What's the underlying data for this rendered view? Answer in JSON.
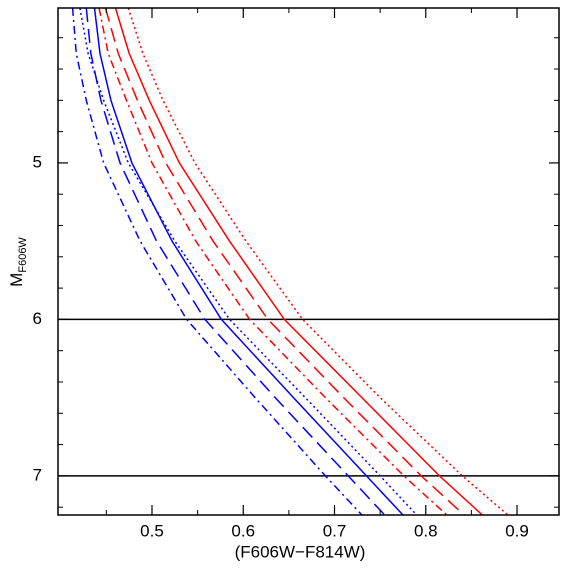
{
  "chart_data": {
    "type": "line",
    "x_label": "(F606W−F814W)",
    "y_label": "M",
    "y_label_sub": "F606W",
    "xlim": [
      0.397,
      0.946
    ],
    "ylim": [
      4.01,
      7.25
    ],
    "y_inverted": true,
    "xticks": [
      0.5,
      0.6,
      0.7,
      0.8,
      0.9
    ],
    "yticks": [
      5,
      6,
      7
    ],
    "xminor": [
      0.45,
      0.55,
      0.65,
      0.75,
      0.85
    ],
    "yminor": [
      4.2,
      4.4,
      4.6,
      4.8,
      5.2,
      5.4,
      5.6,
      5.8,
      6.2,
      6.4,
      6.6,
      6.8,
      7.2
    ],
    "hlines": [
      6,
      7
    ],
    "series": [
      {
        "color": "#ff0000",
        "dash": "solid",
        "x": [
          0.46,
          0.475,
          0.497,
          0.53,
          0.585,
          0.645,
          0.73,
          0.815,
          0.862
        ],
        "values": [
          4.01,
          4.3,
          4.6,
          5.0,
          5.5,
          6.0,
          6.5,
          7.0,
          7.25
        ]
      },
      {
        "color": "#ff0000",
        "dash": "dashed",
        "x": [
          0.449,
          0.463,
          0.484,
          0.515,
          0.567,
          0.627,
          0.71,
          0.795,
          0.842
        ],
        "values": [
          4.01,
          4.3,
          4.6,
          5.0,
          5.5,
          6.0,
          6.5,
          7.0,
          7.25
        ]
      },
      {
        "color": "#ff0000",
        "dash": "dashdot",
        "x": [
          0.442,
          0.452,
          0.472,
          0.5,
          0.548,
          0.607,
          0.69,
          0.776,
          0.823
        ],
        "values": [
          4.01,
          4.3,
          4.6,
          5.0,
          5.5,
          6.0,
          6.5,
          7.0,
          7.25
        ]
      },
      {
        "color": "#ff0000",
        "dash": "dotted",
        "x": [
          0.474,
          0.49,
          0.512,
          0.547,
          0.603,
          0.665,
          0.75,
          0.84,
          0.89
        ],
        "values": [
          4.01,
          4.3,
          4.6,
          5.0,
          5.5,
          6.0,
          6.5,
          7.0,
          7.25
        ]
      },
      {
        "color": "#0000ff",
        "dash": "solid",
        "x": [
          0.437,
          0.443,
          0.455,
          0.478,
          0.522,
          0.576,
          0.655,
          0.735,
          0.775
        ],
        "values": [
          4.01,
          4.3,
          4.6,
          5.0,
          5.5,
          6.0,
          6.5,
          7.0,
          7.25
        ]
      },
      {
        "color": "#0000ff",
        "dash": "dashed",
        "x": [
          0.428,
          0.433,
          0.444,
          0.465,
          0.505,
          0.558,
          0.635,
          0.715,
          0.755
        ],
        "values": [
          4.01,
          4.3,
          4.6,
          5.0,
          5.5,
          6.0,
          6.5,
          7.0,
          7.25
        ]
      },
      {
        "color": "#0000ff",
        "dash": "dashdot",
        "x": [
          0.413,
          0.417,
          0.428,
          0.447,
          0.487,
          0.538,
          0.613,
          0.69,
          0.73
        ],
        "values": [
          4.01,
          4.3,
          4.6,
          5.0,
          5.5,
          6.0,
          6.5,
          7.0,
          7.25
        ]
      },
      {
        "color": "#0000ff",
        "dash": "dotted",
        "x": [
          0.421,
          0.43,
          0.447,
          0.474,
          0.525,
          0.585,
          0.668,
          0.75,
          0.79
        ],
        "values": [
          4.01,
          4.3,
          4.6,
          5.0,
          5.5,
          6.0,
          6.5,
          7.0,
          7.25
        ]
      }
    ]
  }
}
